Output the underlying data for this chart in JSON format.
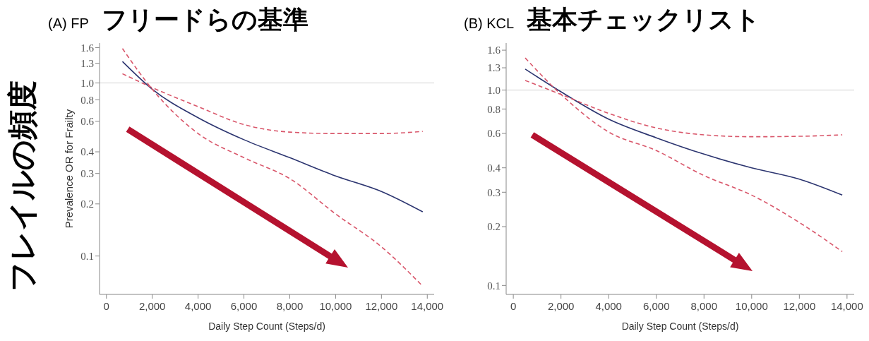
{
  "chart_data": [
    {
      "type": "line",
      "subtitle": "(A) FP",
      "title": "フリードらの基準",
      "ylabel": "Prevalence OR for Frailty",
      "xlabel": "Daily Step Count (Steps/d)",
      "annotations": [
        "フレイルの頻度"
      ],
      "log": "y",
      "legend": false,
      "grid": false,
      "marker": "none",
      "x": [
        700,
        2000,
        4000,
        6000,
        8000,
        10000,
        12000,
        13800
      ],
      "series": [
        {
          "type": "line",
          "color": "#2c3570",
          "line_style": "solid",
          "values": [
            1.33,
            0.92,
            0.63,
            0.47,
            0.37,
            0.29,
            0.236,
            0.18
          ]
        },
        {
          "type": "line",
          "color": "#d9576b",
          "line_style": "dashed",
          "values": [
            1.13,
            0.94,
            0.73,
            0.575,
            0.52,
            0.51,
            0.51,
            0.525
          ]
        },
        {
          "type": "line",
          "color": "#d9576b",
          "line_style": "dashed",
          "values": [
            1.58,
            0.92,
            0.51,
            0.37,
            0.28,
            0.175,
            0.113,
            0.067
          ]
        }
      ],
      "xlim": [
        -300,
        14300
      ],
      "xticks": [
        0,
        {
          "value": 2000,
          "label": "2,000"
        },
        {
          "value": 4000,
          "label": "4,000"
        },
        {
          "value": 6000,
          "label": "6,000"
        },
        {
          "value": 8000,
          "label": "8,000"
        },
        {
          "value": 10000,
          "label": "10,000"
        },
        {
          "value": 12000,
          "label": "12,000"
        },
        {
          "value": 14000,
          "label": "14,000"
        }
      ],
      "ylim": [
        0.06,
        1.7
      ],
      "yticks": [
        0.1,
        0.2,
        0.3,
        0.4,
        0.6,
        0.8,
        {
          "value": 1,
          "label": "1.0"
        },
        1.3,
        1.6
      ],
      "ref_lines": [
        {
          "axis": "y",
          "value": 1,
          "color": "#d0d0d0"
        }
      ]
    },
    {
      "type": "line",
      "subtitle": "(B) KCL",
      "title": "基本チェックリスト",
      "xlabel": "Daily Step Count (Steps/d)",
      "log": "y",
      "legend": false,
      "grid": false,
      "marker": "none",
      "x": [
        500,
        2000,
        4000,
        6000,
        8000,
        10000,
        12000,
        13800
      ],
      "series": [
        {
          "type": "line",
          "color": "#2c3570",
          "line_style": "solid",
          "values": [
            1.28,
            0.98,
            0.71,
            0.57,
            0.47,
            0.4,
            0.35,
            0.29
          ]
        },
        {
          "type": "line",
          "color": "#d9576b",
          "line_style": "dashed",
          "values": [
            1.12,
            0.95,
            0.76,
            0.64,
            0.59,
            0.577,
            0.58,
            0.59
          ]
        },
        {
          "type": "line",
          "color": "#d9576b",
          "line_style": "dashed",
          "values": [
            1.46,
            0.95,
            0.61,
            0.49,
            0.365,
            0.29,
            0.21,
            0.149
          ]
        }
      ],
      "xlim": [
        -300,
        14300
      ],
      "xticks": [
        0,
        {
          "value": 2000,
          "label": "2,000"
        },
        {
          "value": 4000,
          "label": "4,000"
        },
        {
          "value": 6000,
          "label": "6,000"
        },
        {
          "value": 8000,
          "label": "8,000"
        },
        {
          "value": 10000,
          "label": "10,000"
        },
        {
          "value": 12000,
          "label": "12,000"
        },
        {
          "value": 14000,
          "label": "14,000"
        }
      ],
      "ylim": [
        0.09,
        1.74
      ],
      "yticks": [
        0.1,
        0.2,
        0.3,
        0.4,
        0.6,
        0.8,
        {
          "value": 1,
          "label": "1.0"
        },
        1.3,
        1.6
      ],
      "ref_lines": [
        {
          "axis": "y",
          "value": 1,
          "color": "#d0d0d0"
        }
      ]
    }
  ]
}
